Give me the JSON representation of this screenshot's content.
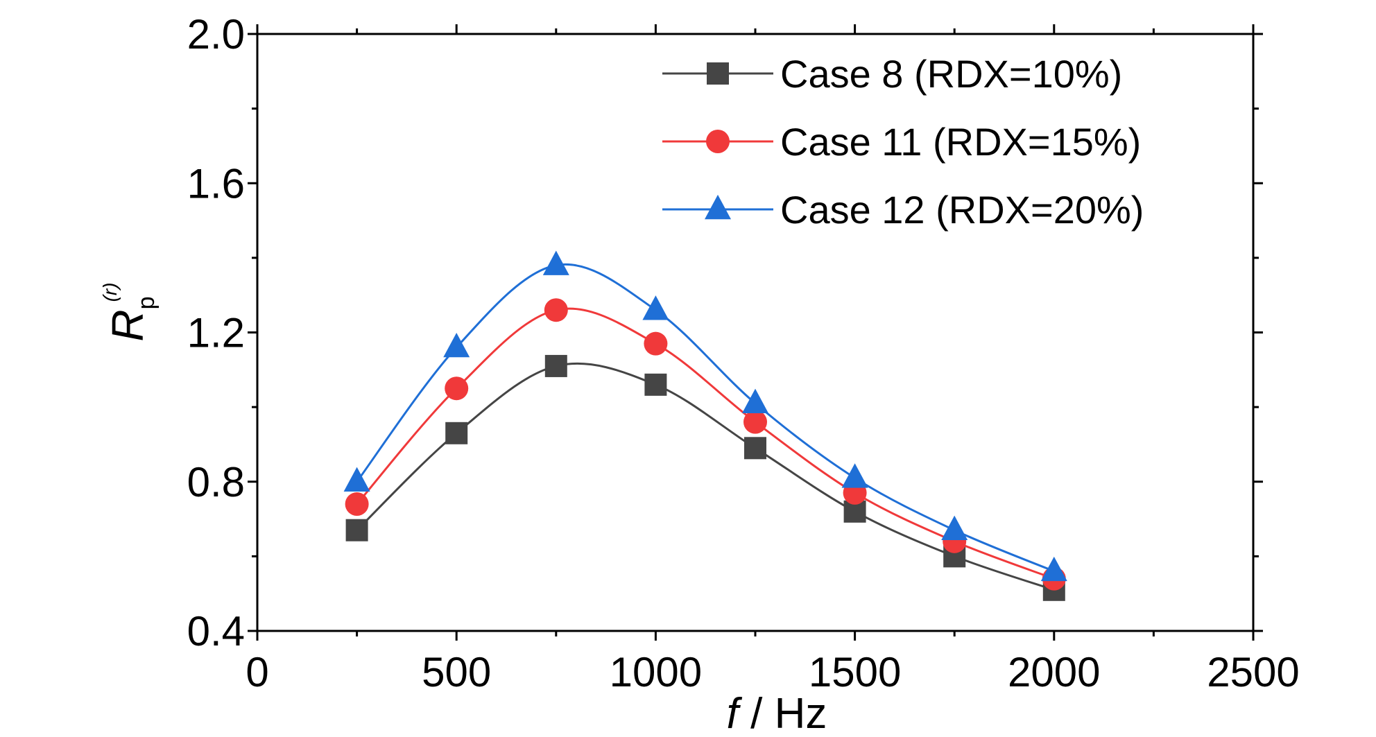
{
  "chart_data": {
    "type": "line",
    "xlabel_italic": "f",
    "xlabel_rest": " / Hz",
    "ylabel_main": "R",
    "ylabel_sub": "p",
    "ylabel_sup": "(r)",
    "xlim": [
      0,
      2500
    ],
    "ylim": [
      0.4,
      2.0
    ],
    "xticks": [
      "0",
      "500",
      "1000",
      "1500",
      "2000",
      "2500"
    ],
    "yticks": [
      "0.4",
      "0.8",
      "1.2",
      "1.6",
      "2.0"
    ],
    "x": [
      250,
      500,
      750,
      1000,
      1250,
      1500,
      1750,
      2000
    ],
    "legend_position": "top-right",
    "grid": false,
    "series": [
      {
        "name": "Case 8 (RDX=10%)",
        "marker": "square",
        "color": "#454545",
        "values": [
          0.67,
          0.93,
          1.11,
          1.06,
          0.89,
          0.72,
          0.6,
          0.51
        ]
      },
      {
        "name": "Case 11 (RDX=15%)",
        "marker": "circle",
        "color": "#f0393a",
        "values": [
          0.74,
          1.05,
          1.26,
          1.17,
          0.96,
          0.77,
          0.64,
          0.54
        ]
      },
      {
        "name": "Case 12 (RDX=20%)",
        "marker": "triangle",
        "color": "#1f6fd6",
        "values": [
          0.8,
          1.16,
          1.38,
          1.26,
          1.01,
          0.81,
          0.67,
          0.56
        ]
      }
    ]
  }
}
